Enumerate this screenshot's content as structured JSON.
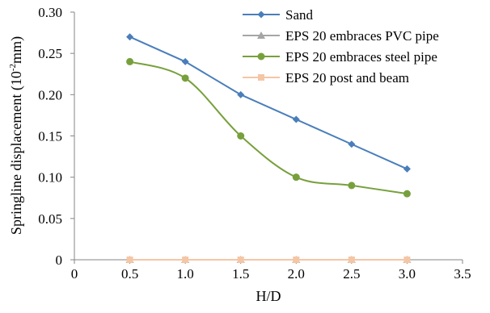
{
  "chart_data": {
    "type": "line",
    "title": "",
    "xlabel": "H/D",
    "ylabel": {
      "before": "Springline displacement (10",
      "sup": "-2",
      "after": "mm)"
    },
    "xlim": [
      0,
      3.5
    ],
    "ylim": [
      0,
      0.3
    ],
    "xticks": [
      0,
      0.5,
      1.0,
      1.5,
      2.0,
      2.5,
      3.0,
      3.5
    ],
    "xtick_labels": [
      "0",
      "0.5",
      "1.0",
      "1.5",
      "2.0",
      "2.5",
      "3.0",
      "3.5"
    ],
    "yticks": [
      0,
      0.05,
      0.1,
      0.15,
      0.2,
      0.25,
      0.3
    ],
    "ytick_labels": [
      "0",
      "0.05",
      "0.10",
      "0.15",
      "0.20",
      "0.25",
      "0.30"
    ],
    "grid": false,
    "legend_position": "top-right",
    "x": [
      0.5,
      1.0,
      1.5,
      2.0,
      2.5,
      3.0
    ],
    "series": [
      {
        "name": "Sand",
        "values": [
          0.27,
          0.24,
          0.2,
          0.17,
          0.14,
          0.11
        ],
        "color": "#4a7ebb",
        "marker": "diamond",
        "smooth": false
      },
      {
        "name": "EPS 20 embraces PVC pipe",
        "values": [
          0,
          0,
          0,
          0,
          0,
          0
        ],
        "color": "#a5a5a5",
        "marker": "triangle",
        "smooth": false
      },
      {
        "name": "EPS 20 embraces steel  pipe",
        "values": [
          0.24,
          0.22,
          0.15,
          0.1,
          0.09,
          0.08
        ],
        "color": "#77a03c",
        "marker": "circle",
        "smooth": true
      },
      {
        "name": "EPS 20 post and beam",
        "values": [
          0,
          0,
          0,
          0,
          0,
          0
        ],
        "color": "#f5c6a5",
        "marker": "square",
        "smooth": false
      }
    ]
  }
}
